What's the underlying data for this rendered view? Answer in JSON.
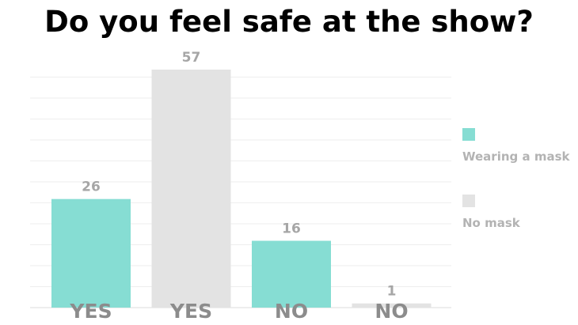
{
  "chart_data": {
    "type": "bar",
    "title": "Do you feel safe at the show?",
    "categories": [
      "YES",
      "YES",
      "NO",
      "NO"
    ],
    "values": [
      26,
      57,
      16,
      1
    ],
    "bar_series": [
      "Wearing a mask",
      "No mask",
      "Wearing a mask",
      "No mask"
    ],
    "series": [
      {
        "name": "Wearing a mask",
        "color": "#86ddd3"
      },
      {
        "name": "No mask",
        "color": "#e3e3e3"
      }
    ],
    "ylim": [
      0,
      57
    ],
    "grid": true,
    "legend": "right",
    "xlabel": "",
    "ylabel": ""
  }
}
